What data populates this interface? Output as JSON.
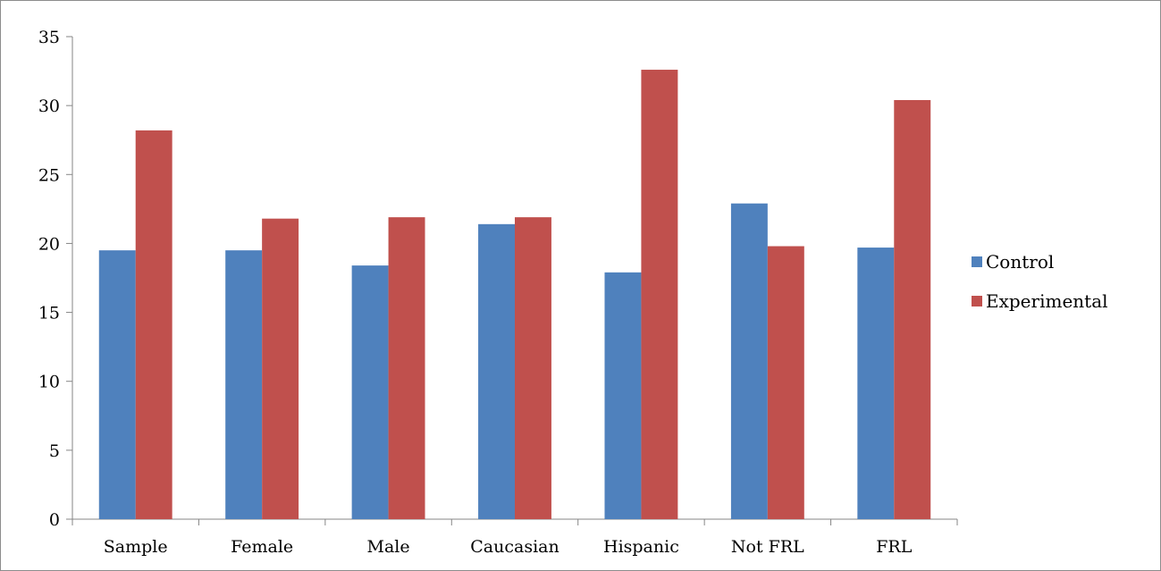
{
  "chart_data": {
    "type": "bar",
    "categories": [
      "Sample",
      "Female",
      "Male",
      "Caucasian",
      "Hispanic",
      "Not FRL",
      "FRL"
    ],
    "series": [
      {
        "name": "Control",
        "color": "#4f81bd",
        "values": [
          19.5,
          19.5,
          18.4,
          21.4,
          17.9,
          22.9,
          19.7
        ]
      },
      {
        "name": "Experimental",
        "color": "#c0504d",
        "values": [
          28.2,
          21.8,
          21.9,
          21.9,
          32.6,
          19.8,
          30.4
        ]
      }
    ],
    "ylim": [
      0,
      35
    ],
    "yticks": [
      "0",
      "5",
      "10",
      "15",
      "20",
      "25",
      "30",
      "35"
    ],
    "title": "",
    "xlabel": "",
    "ylabel": "",
    "grid": false,
    "legend_position": "right"
  }
}
